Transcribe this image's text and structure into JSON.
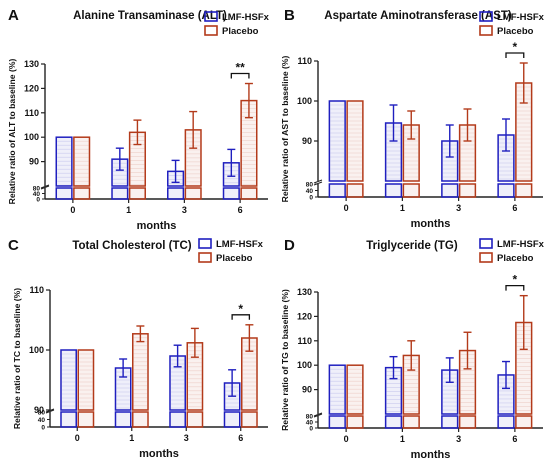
{
  "chart_data": [
    {
      "panel": "A",
      "type": "bar",
      "title": "Alanine Transaminase (ALT)",
      "ylabel": "Relative ratio of ALT to baseline (%)",
      "xlabel": "months",
      "categories": [
        "0",
        "1",
        "3",
        "6"
      ],
      "series": [
        {
          "name": "LMF-HSFx",
          "color": "#1f1fbf",
          "values": [
            100,
            91,
            86,
            89.5
          ],
          "errors": [
            0,
            4.5,
            4.5,
            5.5
          ]
        },
        {
          "name": "Placebo",
          "color": "#b33a1a",
          "values": [
            100,
            102,
            103,
            115
          ],
          "errors": [
            0,
            5,
            7.5,
            7
          ]
        }
      ],
      "y_break": [
        0,
        40,
        80
      ],
      "yticks": [
        90,
        100,
        110,
        120,
        130
      ],
      "ylim": [
        80,
        130
      ],
      "significance": [
        {
          "category": "6",
          "label": "**"
        }
      ]
    },
    {
      "panel": "B",
      "type": "bar",
      "title": "Aspartate Aminotransferase (AST)",
      "ylabel": "Relative ratio of AST to baseline (%)",
      "xlabel": "months",
      "categories": [
        "0",
        "1",
        "3",
        "6"
      ],
      "series": [
        {
          "name": "LMF-HSFx",
          "color": "#1f1fbf",
          "values": [
            100,
            94.5,
            90,
            91.5
          ],
          "errors": [
            0,
            4.5,
            4,
            4
          ]
        },
        {
          "name": "Placebo",
          "color": "#b33a1a",
          "values": [
            100,
            94,
            94,
            104.5
          ],
          "errors": [
            0,
            3.5,
            4,
            5
          ]
        }
      ],
      "y_break": [
        0,
        40,
        80
      ],
      "yticks": [
        90,
        100,
        110
      ],
      "ylim": [
        80,
        110
      ],
      "significance": [
        {
          "category": "6",
          "label": "*"
        }
      ]
    },
    {
      "panel": "C",
      "type": "bar",
      "title": "Total Cholesterol (TC)",
      "ylabel": "Relative ratio of TC to baseline (%)",
      "xlabel": "months",
      "categories": [
        "0",
        "1",
        "3",
        "6"
      ],
      "series": [
        {
          "name": "LMF-HSFx",
          "color": "#1f1fbf",
          "values": [
            100,
            97,
            99,
            94.5
          ],
          "errors": [
            0,
            1.5,
            1.8,
            2.2
          ]
        },
        {
          "name": "Placebo",
          "color": "#b33a1a",
          "values": [
            100,
            102.7,
            101.2,
            102
          ],
          "errors": [
            0,
            1.3,
            2.4,
            2.2
          ]
        }
      ],
      "y_break": [
        0,
        40,
        80
      ],
      "yticks": [
        90,
        100,
        110
      ],
      "ylim": [
        90,
        110
      ],
      "significance": [
        {
          "category": "6",
          "label": "*"
        }
      ]
    },
    {
      "panel": "D",
      "type": "bar",
      "title": "Triglyceride (TG)",
      "ylabel": "Relative ratio of TG to baseline (%)",
      "xlabel": "months",
      "categories": [
        "0",
        "1",
        "3",
        "6"
      ],
      "series": [
        {
          "name": "LMF-HSFx",
          "color": "#1f1fbf",
          "values": [
            100,
            99,
            98,
            96
          ],
          "errors": [
            0,
            4.5,
            5,
            5.5
          ]
        },
        {
          "name": "Placebo",
          "color": "#b33a1a",
          "values": [
            100,
            104,
            106,
            117.5
          ],
          "errors": [
            0,
            6,
            7.5,
            11
          ]
        }
      ],
      "y_break": [
        0,
        40,
        80
      ],
      "yticks": [
        90,
        100,
        110,
        120,
        130
      ],
      "ylim": [
        80,
        130
      ],
      "significance": [
        {
          "category": "6",
          "label": "*"
        }
      ]
    }
  ]
}
